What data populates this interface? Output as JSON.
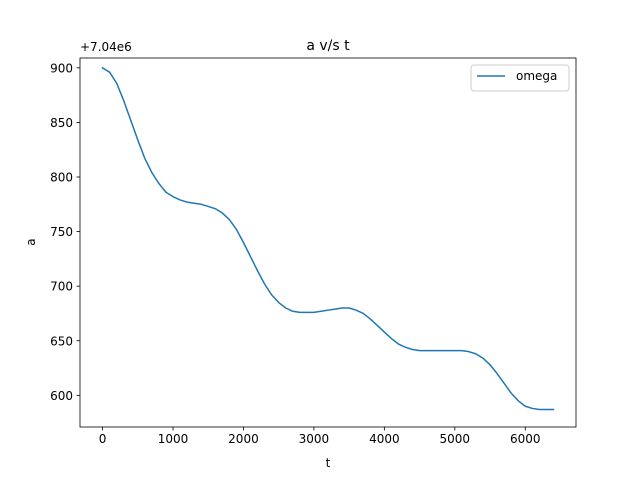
{
  "chart_data": {
    "type": "line",
    "title": "a v/s t",
    "xlabel": "t",
    "ylabel": "a",
    "offset_text": "+7.04e6",
    "xlim": [
      -320,
      6720
    ],
    "ylim": [
      571,
      909
    ],
    "xticks": [
      0,
      1000,
      2000,
      3000,
      4000,
      5000,
      6000
    ],
    "yticks": [
      600,
      650,
      700,
      750,
      800,
      850,
      900
    ],
    "grid": false,
    "legend": {
      "placement": "top-right",
      "entries": [
        "omega"
      ]
    },
    "series": [
      {
        "name": "omega",
        "color": "#1f77b4",
        "x": [
          0,
          100,
          200,
          300,
          400,
          500,
          600,
          700,
          800,
          900,
          1000,
          1100,
          1200,
          1300,
          1400,
          1500,
          1600,
          1700,
          1800,
          1900,
          2000,
          2100,
          2200,
          2300,
          2400,
          2500,
          2600,
          2700,
          2800,
          2900,
          3000,
          3100,
          3200,
          3300,
          3400,
          3500,
          3600,
          3700,
          3800,
          3900,
          4000,
          4100,
          4200,
          4300,
          4400,
          4500,
          4600,
          4700,
          4800,
          4900,
          5000,
          5100,
          5200,
          5300,
          5400,
          5500,
          5600,
          5700,
          5800,
          5900,
          6000,
          6100,
          6200,
          6300,
          6400
        ],
        "y": [
          900,
          896,
          886,
          870,
          852,
          834,
          817,
          804,
          794,
          786,
          782,
          779,
          777,
          776,
          775,
          773,
          771,
          767,
          761,
          752,
          740,
          727,
          714,
          702,
          692,
          685,
          680,
          677,
          676,
          676,
          676,
          677,
          678,
          679,
          680,
          680,
          678,
          675,
          670,
          664,
          658,
          652,
          647,
          644,
          642,
          641,
          641,
          641,
          641,
          641,
          641,
          641,
          640,
          638,
          634,
          628,
          620,
          611,
          602,
          595,
          590,
          588,
          587,
          587,
          587
        ]
      }
    ]
  }
}
